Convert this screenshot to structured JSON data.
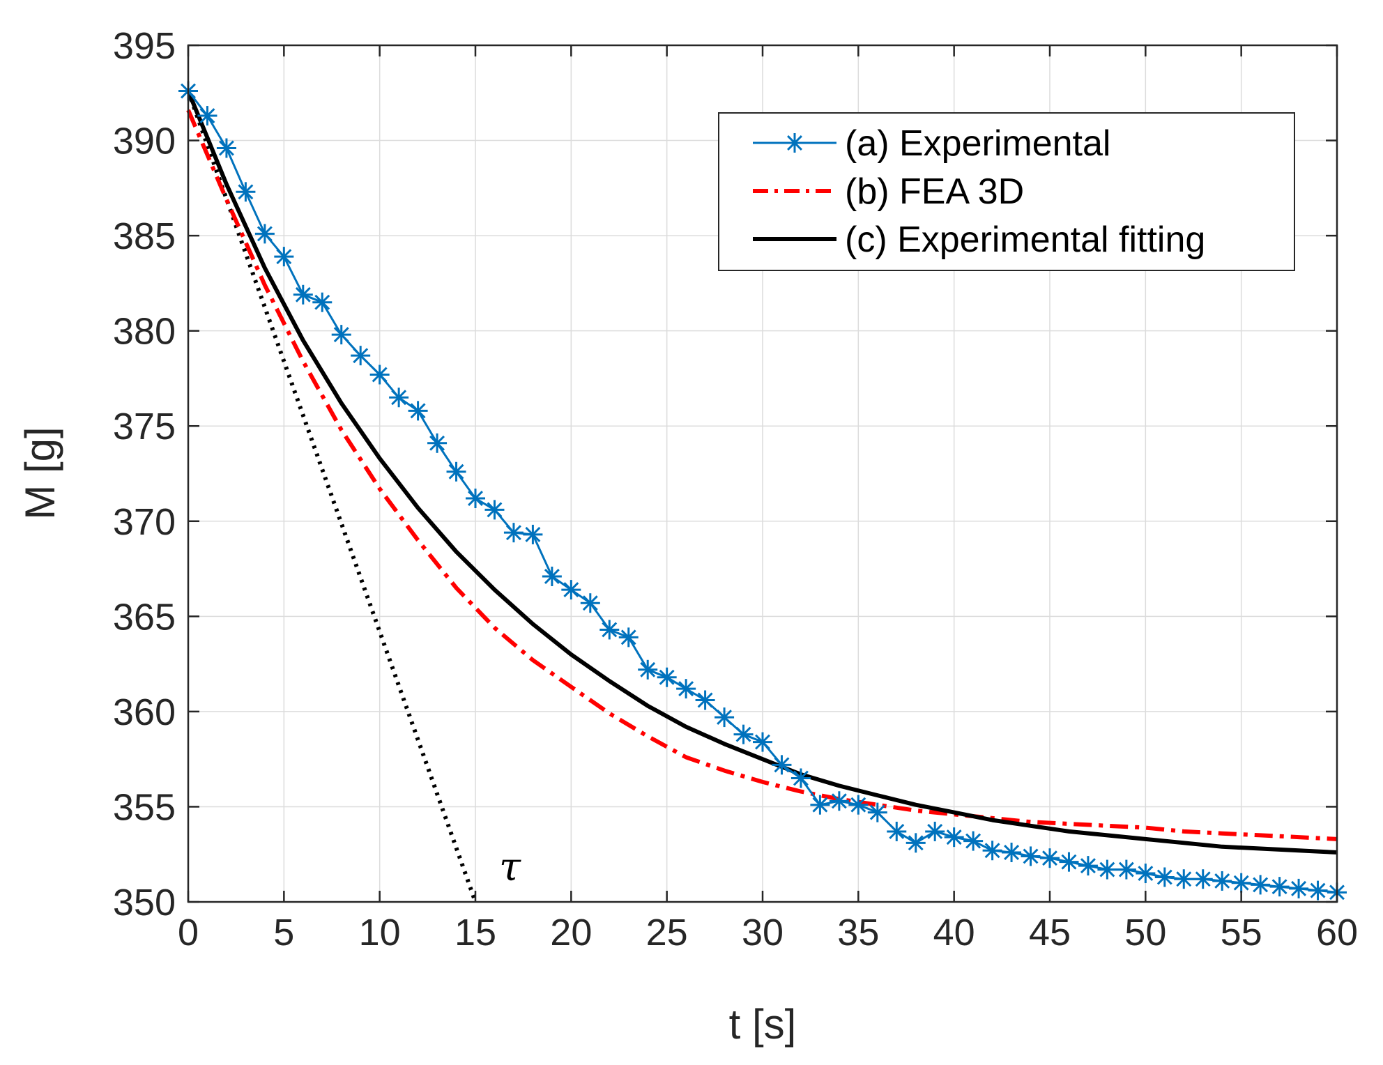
{
  "chart_data": {
    "type": "line",
    "title": "",
    "xlabel": "t [s]",
    "ylabel": "M [g]",
    "xlim": [
      0,
      60
    ],
    "ylim": [
      350,
      395
    ],
    "xticks": [
      0,
      5,
      10,
      15,
      20,
      25,
      30,
      35,
      40,
      45,
      50,
      55,
      60
    ],
    "yticks": [
      350,
      355,
      360,
      365,
      370,
      375,
      380,
      385,
      390,
      395
    ],
    "grid": true,
    "legend_position": "top-right",
    "annotation": "τ",
    "colors": {
      "experimental": "#0072BD",
      "fea": "#FF0000",
      "fitting": "#000000",
      "tangent": "#000000",
      "grid": "#dcdcdc",
      "axis": "#262626"
    },
    "series": [
      {
        "name": "(a) Experimental",
        "style": "solid-star",
        "x": [
          0,
          1,
          2,
          3,
          4,
          5,
          6,
          7,
          8,
          9,
          10,
          11,
          12,
          13,
          14,
          15,
          16,
          17,
          18,
          19,
          20,
          21,
          22,
          23,
          24,
          25,
          26,
          27,
          28,
          29,
          30,
          31,
          32,
          33,
          34,
          35,
          36,
          37,
          38,
          39,
          40,
          41,
          42,
          43,
          44,
          45,
          46,
          47,
          48,
          49,
          50,
          51,
          52,
          53,
          54,
          55,
          56,
          57,
          58,
          59,
          60
        ],
        "values": [
          392.6,
          391.3,
          389.6,
          387.3,
          385.1,
          383.9,
          381.9,
          381.5,
          379.8,
          378.7,
          377.7,
          376.5,
          375.8,
          374.1,
          372.6,
          371.2,
          370.6,
          369.4,
          369.3,
          367.1,
          366.4,
          365.7,
          364.3,
          363.9,
          362.2,
          361.8,
          361.2,
          360.6,
          359.7,
          358.8,
          358.4,
          357.2,
          356.5,
          355.1,
          355.3,
          355.1,
          354.7,
          353.7,
          353.1,
          353.7,
          353.4,
          353.2,
          352.7,
          352.6,
          352.4,
          352.3,
          352.1,
          351.9,
          351.7,
          351.7,
          351.5,
          351.3,
          351.2,
          351.2,
          351.1,
          351.0,
          350.9,
          350.8,
          350.7,
          350.6,
          350.5
        ]
      },
      {
        "name": "(b) FEA 3D",
        "style": "dash-dot",
        "x": [
          0,
          2,
          4,
          6,
          8,
          10,
          12,
          14,
          16,
          18,
          20,
          22,
          24,
          26,
          28,
          30,
          32,
          34,
          36,
          38,
          40,
          42,
          44,
          46,
          48,
          50,
          52,
          54,
          56,
          58,
          60
        ],
        "values": [
          391.6,
          386.9,
          382.4,
          378.4,
          374.8,
          371.7,
          369.0,
          366.5,
          364.4,
          362.7,
          361.3,
          359.9,
          358.7,
          357.6,
          356.9,
          356.3,
          355.8,
          355.4,
          355.1,
          354.8,
          354.6,
          354.4,
          354.2,
          354.1,
          354.0,
          353.9,
          353.7,
          353.6,
          353.5,
          353.4,
          353.3
        ]
      },
      {
        "name": "(c) Experimental fitting",
        "style": "solid-thick",
        "x": [
          0,
          2,
          4,
          6,
          8,
          10,
          12,
          14,
          16,
          18,
          20,
          22,
          24,
          26,
          28,
          30,
          32,
          34,
          36,
          38,
          40,
          42,
          44,
          46,
          48,
          50,
          52,
          54,
          56,
          58,
          60
        ],
        "values": [
          392.6,
          387.7,
          383.3,
          379.5,
          376.2,
          373.3,
          370.7,
          368.4,
          366.4,
          364.6,
          363.0,
          361.6,
          360.3,
          359.2,
          358.3,
          357.5,
          356.7,
          356.1,
          355.6,
          355.1,
          354.7,
          354.3,
          354.0,
          353.7,
          353.5,
          353.3,
          353.1,
          352.9,
          352.8,
          352.7,
          352.6
        ]
      },
      {
        "name": "tangent",
        "style": "dotted",
        "x": [
          0,
          15.0
        ],
        "values": [
          392.6,
          350
        ]
      }
    ]
  },
  "legend": [
    {
      "label": "(a) Experimental"
    },
    {
      "label": "(b) FEA 3D"
    },
    {
      "label": "(c) Experimental fitting"
    }
  ]
}
